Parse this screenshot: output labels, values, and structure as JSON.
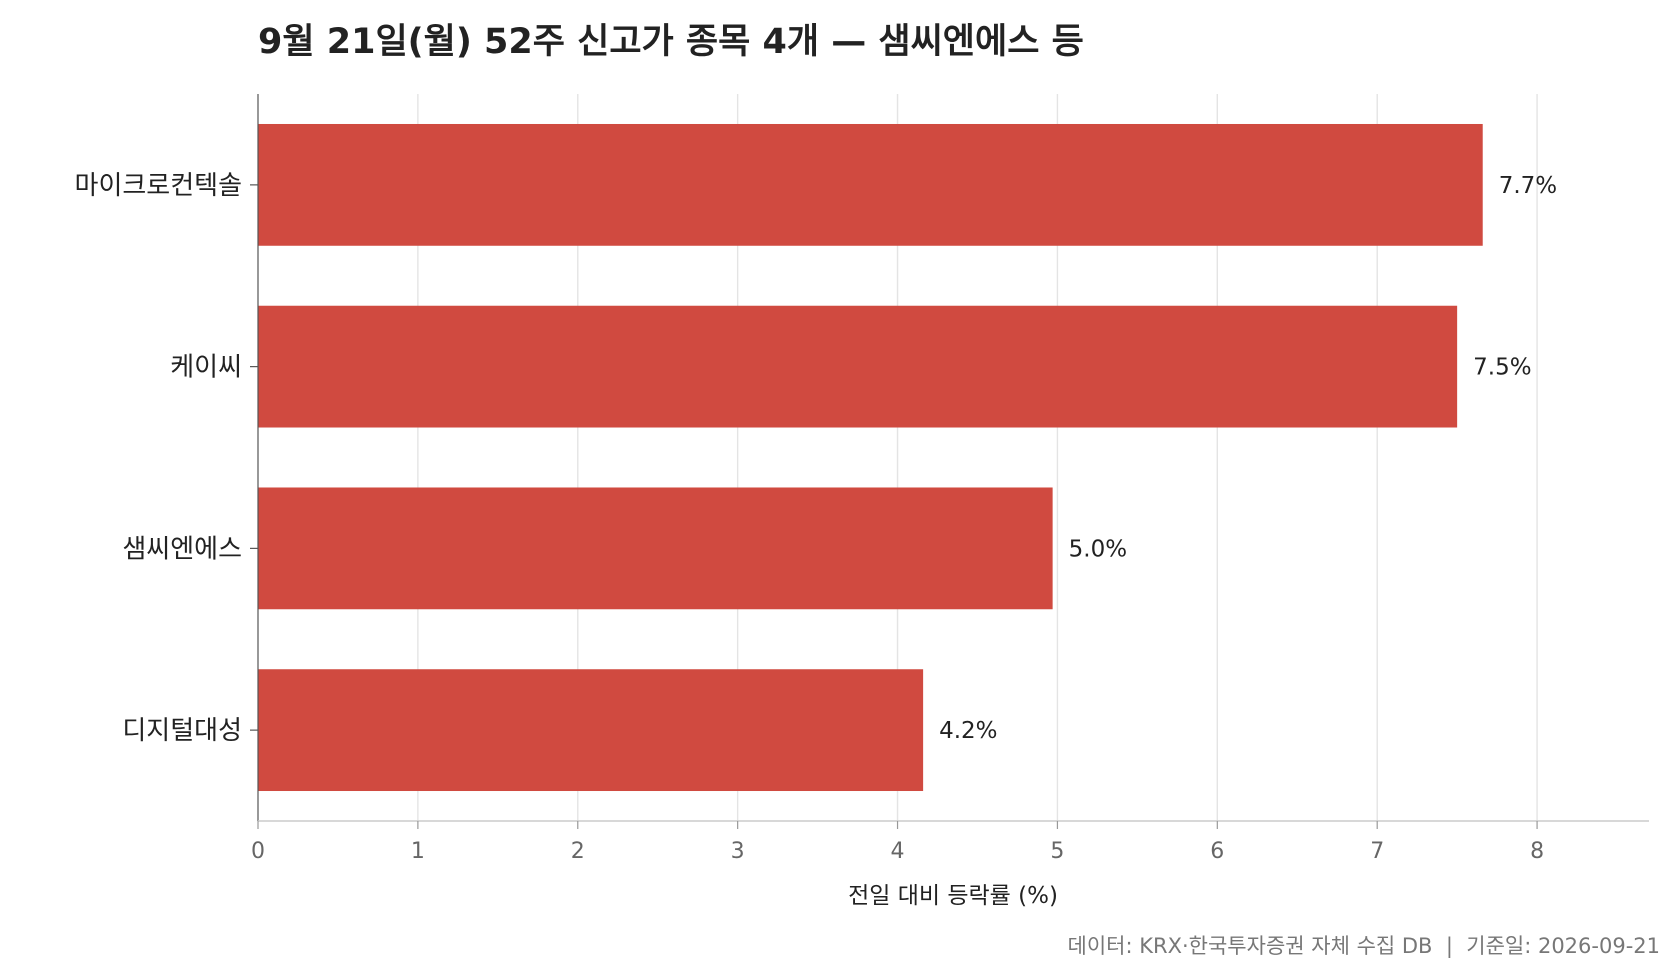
{
  "chart_data": {
    "type": "bar",
    "orientation": "horizontal",
    "title": "9월 21일(월) 52주 신고가 종목 4개 — 샘씨엔에스 등",
    "categories": [
      "마이크로컨텍솔",
      "케이씨",
      "샘씨엔에스",
      "디지털대성"
    ],
    "values": [
      7.66,
      7.5,
      4.97,
      4.16
    ],
    "value_labels": [
      "7.7%",
      "7.5%",
      "5.0%",
      "4.2%"
    ],
    "xlabel": "전일 대비 등락률 (%)",
    "ylabel": "",
    "xlim": [
      0,
      8.7
    ],
    "xticks": [
      0,
      1,
      2,
      3,
      4,
      5,
      6,
      7,
      8
    ],
    "grid": "vertical",
    "bar_color": "#d04a40",
    "source": "데이터: KRX·한국투자증권 자체 수집 DB  |  기준일: 2026-09-21"
  }
}
